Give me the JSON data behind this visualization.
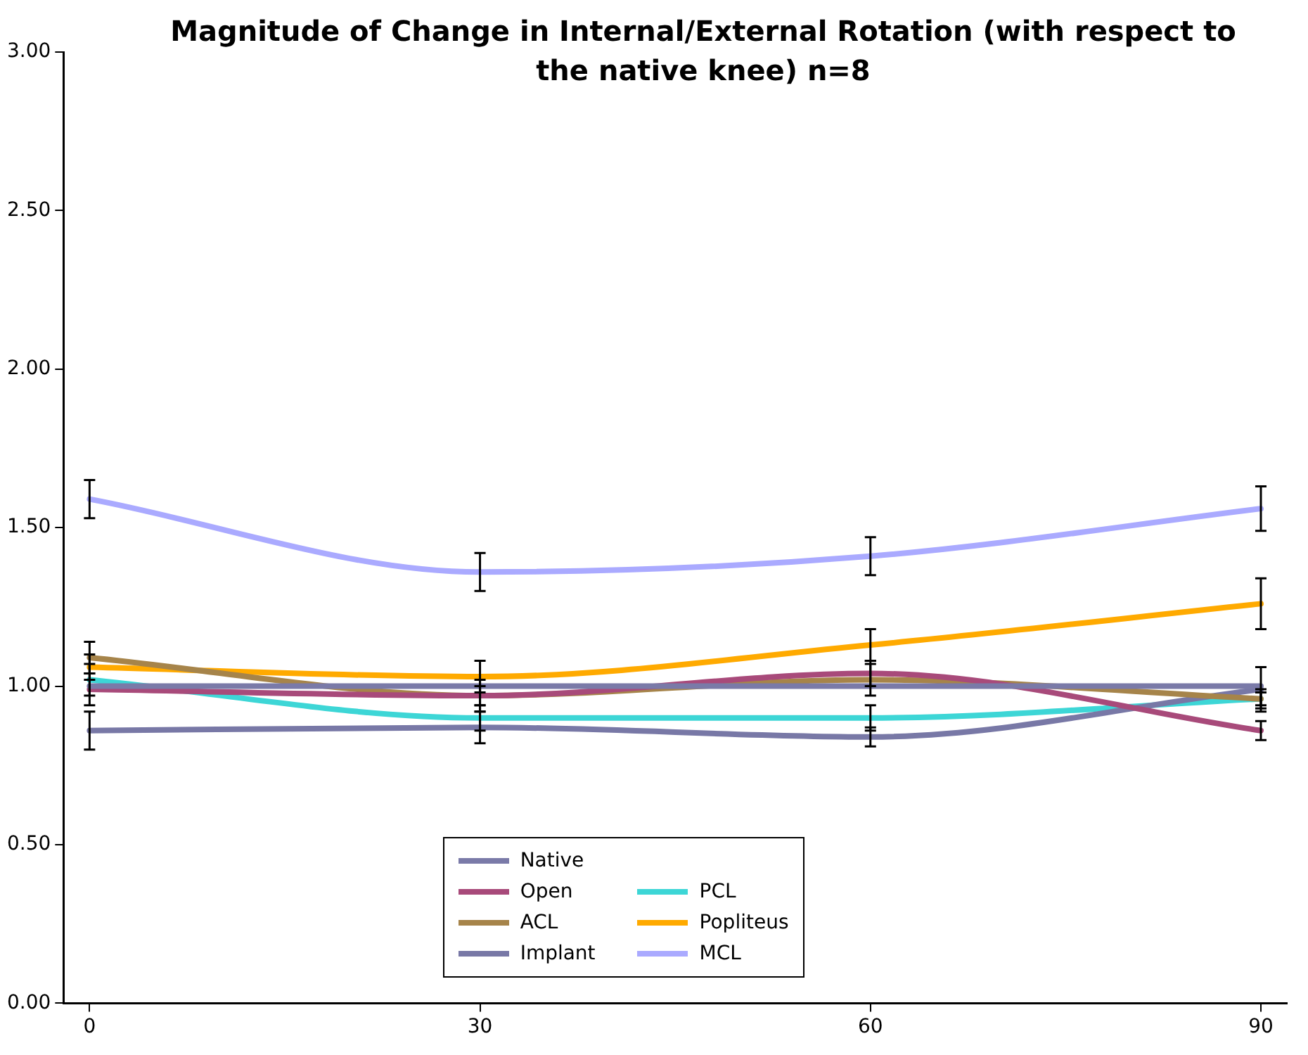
{
  "chart_data": {
    "type": "line",
    "title": "Magnitude of Change in Internal/External Rotation (with respect to the native knee)  n=8",
    "x": [
      0,
      30,
      60,
      90
    ],
    "xlim": [
      -2,
      92
    ],
    "xticks": [
      0,
      30,
      60,
      90
    ],
    "ylim": [
      0,
      3
    ],
    "yticks": [
      {
        "value": 0,
        "label": "0.00"
      },
      {
        "value": 0.5,
        "label": "0.50"
      },
      {
        "value": 1,
        "label": "1.00"
      },
      {
        "value": 1.5,
        "label": "1.50"
      },
      {
        "value": 2,
        "label": "2.00"
      },
      {
        "value": 2.5,
        "label": "2.50"
      },
      {
        "value": 3,
        "label": "3.00"
      }
    ],
    "grid": false,
    "legend": "bottom",
    "marker": "none",
    "line_style": "solid",
    "series": [
      {
        "name": "Native",
        "color": "#7a7aa8",
        "values": [
          1.0,
          1.0,
          1.0,
          1.0
        ]
      },
      {
        "name": "Open",
        "color": "#a84a7a",
        "values": [
          0.99,
          0.97,
          1.04,
          0.86
        ],
        "errors": [
          0.05,
          0.05,
          0.04,
          0.03
        ]
      },
      {
        "name": "ACL",
        "color": "#a6844a",
        "values": [
          1.09,
          0.97,
          1.02,
          0.96
        ],
        "errors": [
          0.05,
          0.03,
          0.05,
          0.03
        ]
      },
      {
        "name": "Implant",
        "color": "#7878a6",
        "values": [
          0.86,
          0.87,
          0.84,
          0.99
        ],
        "errors": [
          0.06,
          0.05,
          0.03,
          0.07
        ]
      },
      {
        "name": "PCL",
        "color": "#3dd6d6",
        "values": [
          1.02,
          0.9,
          0.9,
          0.96
        ],
        "errors": [
          0.05,
          0.04,
          0.04,
          0.02
        ]
      },
      {
        "name": "Popliteus",
        "color": "#ffaa00",
        "values": [
          1.06,
          1.03,
          1.13,
          1.26
        ],
        "errors": [
          0.04,
          0.05,
          0.05,
          0.08
        ]
      },
      {
        "name": "MCL",
        "color": "#aaaaff",
        "values": [
          1.59,
          1.36,
          1.41,
          1.56
        ],
        "errors": [
          0.06,
          0.06,
          0.06,
          0.07
        ]
      }
    ]
  }
}
